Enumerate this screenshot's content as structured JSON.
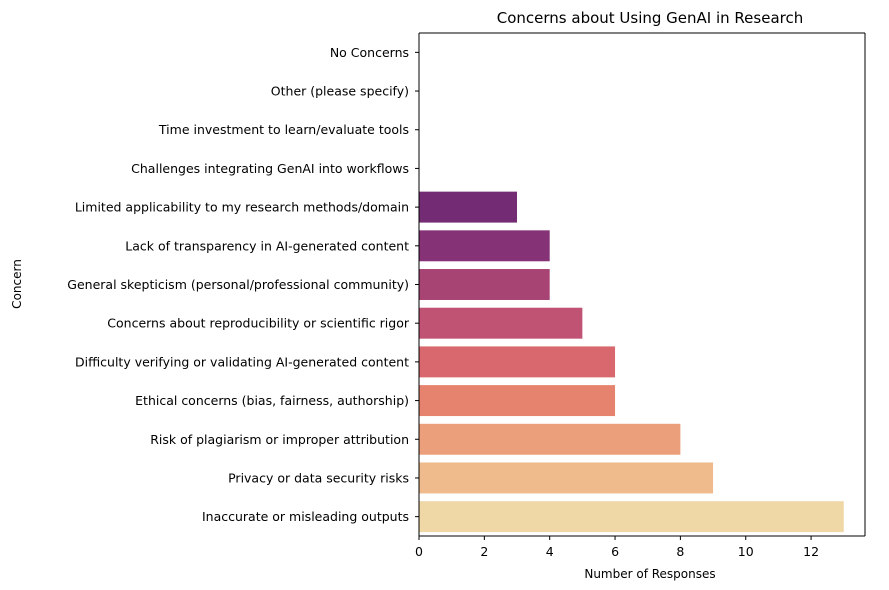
{
  "chart_data": {
    "type": "bar",
    "orientation": "horizontal",
    "title": "Concerns about Using GenAI in Research",
    "xlabel": "Number of Responses",
    "ylabel": "Concern",
    "xlim": [
      0,
      13.65
    ],
    "xticks": [
      0,
      2,
      4,
      6,
      8,
      10,
      12
    ],
    "grid": false,
    "legend": "none",
    "categories": [
      "No Concerns",
      "Other (please specify)",
      "Time investment to learn/evaluate tools",
      "Challenges integrating GenAI into workflows",
      "Limited applicability to my research methods/domain",
      "Lack of transparency in AI-generated content",
      "General skepticism (personal/professional community)",
      "Concerns about reproducibility or scientific rigor",
      "Difficulty verifying or validating AI-generated content",
      "Ethical concerns (bias, fairness, authorship)",
      "Risk of plagiarism or improper attribution",
      "Privacy or data security risks",
      "Inaccurate or misleading outputs"
    ],
    "values": [
      0,
      0,
      0,
      0,
      3,
      4,
      4,
      5,
      6,
      6,
      8,
      9,
      13
    ],
    "colors": [
      "#2f0f4f",
      "#3e1258",
      "#501763",
      "#621c6e",
      "#732c74",
      "#853276",
      "#a74474",
      "#c05373",
      "#d8686e",
      "#e5836f",
      "#eba07b",
      "#efbb8d",
      "#f0d7a6"
    ]
  }
}
